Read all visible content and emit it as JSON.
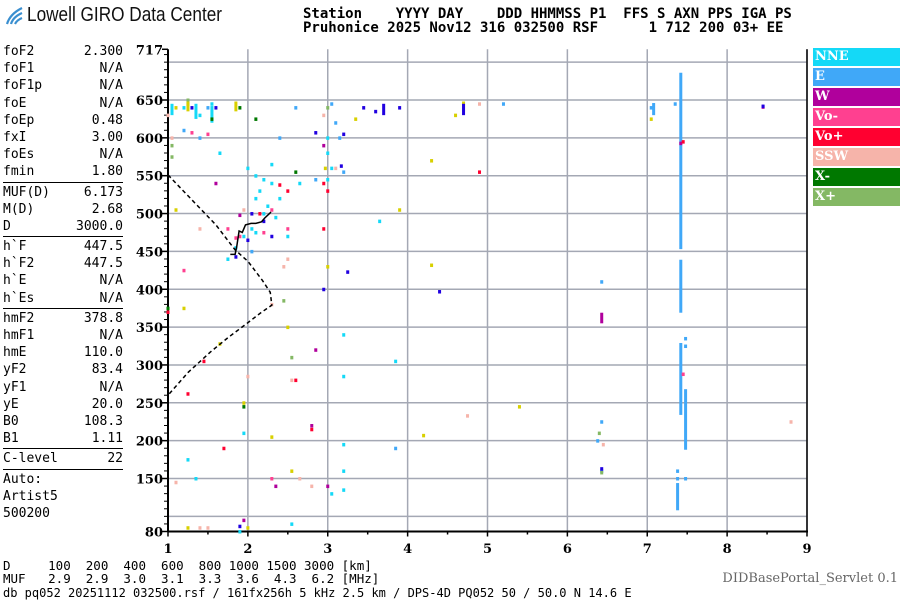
{
  "logo": {
    "text": "Lowell GIRO Data Center"
  },
  "header": {
    "labels_line": "Station    YYYY DAY    DDD HHMMSS P1  FFS S AXN PPS IGA PS",
    "values_line": "Pruhonice 2025 Nov12 316 032500 RSF      1 712 200 03+ EE"
  },
  "params": [
    {
      "group": [
        {
          "name": "foF2",
          "value": "2.300"
        },
        {
          "name": "foF1",
          "value": "N/A"
        },
        {
          "name": "foF1p",
          "value": "N/A"
        },
        {
          "name": "foE",
          "value": "N/A"
        },
        {
          "name": "foEp",
          "value": "0.48"
        },
        {
          "name": "fxI",
          "value": "3.00"
        },
        {
          "name": "foEs",
          "value": "N/A"
        },
        {
          "name": "fmin",
          "value": "1.80"
        }
      ]
    },
    {
      "group": [
        {
          "name": "MUF(D)",
          "value": "6.173"
        },
        {
          "name": "M(D)",
          "value": "2.68"
        },
        {
          "name": "D",
          "value": "3000.0"
        }
      ]
    },
    {
      "group": [
        {
          "name": "h`F",
          "value": "447.5"
        },
        {
          "name": "h`F2",
          "value": "447.5"
        },
        {
          "name": "h`E",
          "value": "N/A"
        },
        {
          "name": "h`Es",
          "value": "N/A"
        }
      ]
    },
    {
      "group": [
        {
          "name": "hmF2",
          "value": "378.8"
        },
        {
          "name": "hmF1",
          "value": "N/A"
        },
        {
          "name": "hmE",
          "value": "110.0"
        },
        {
          "name": "yF2",
          "value": "83.4"
        },
        {
          "name": "yF1",
          "value": "N/A"
        },
        {
          "name": "yE",
          "value": "20.0"
        },
        {
          "name": "B0",
          "value": "108.3"
        },
        {
          "name": "B1",
          "value": "1.11"
        }
      ]
    },
    {
      "group": [
        {
          "name": "C-level",
          "value": "22"
        }
      ]
    }
  ],
  "autoscaling": [
    "Auto:",
    "Artist5",
    "500200"
  ],
  "bottom": {
    "d_line": "D     100  200  400  600  800 1000 1500 3000 [km]",
    "muf_line": "MUF   2.9  2.9  3.0  3.1  3.3  3.6  4.3  6.2 [MHz]",
    "db_line": "db pq052 20251112 032500.rsf / 161fx256h 5 kHz 2.5 km / DPS-4D PQ052 50 / 50.0 N 14.6 E",
    "servlet": "DIDBasePortal_Servlet 0.1"
  },
  "chart_data": {
    "type": "scatter",
    "title": "",
    "xlabel": "",
    "ylabel": "",
    "xlim": [
      1,
      9
    ],
    "ylim": [
      80,
      717
    ],
    "x_ticks": [
      "1",
      "2",
      "3",
      "4",
      "5",
      "6",
      "7",
      "8",
      "9"
    ],
    "y_ticks": [
      "717",
      "650",
      "600",
      "550",
      "500",
      "450",
      "400",
      "350",
      "300",
      "250",
      "200",
      "150",
      "80"
    ],
    "grid": true,
    "legend_placement": "right",
    "legend": [
      {
        "name": "NNE",
        "color": "#14d9f7"
      },
      {
        "name": "E",
        "color": "#40a8f8"
      },
      {
        "name": "W",
        "color": "#b0009c"
      },
      {
        "name": "Vo-",
        "color": "#ff4090"
      },
      {
        "name": "Vo+",
        "color": "#ff0030"
      },
      {
        "name": "SSW",
        "color": "#f6b4aa"
      },
      {
        "name": "X-",
        "color": "#007800"
      },
      {
        "name": "X+",
        "color": "#84b864"
      }
    ],
    "series": [
      {
        "name": "NNE",
        "color": "#14d9f7",
        "points": [
          [
            2.1,
            520
          ],
          [
            2.15,
            530
          ],
          [
            2.2,
            545
          ],
          [
            2.3,
            540
          ],
          [
            2.25,
            510
          ],
          [
            2.05,
            480
          ],
          [
            1.95,
            470
          ],
          [
            1.85,
            455
          ],
          [
            2.1,
            475
          ],
          [
            2.2,
            500
          ],
          [
            1.75,
            440
          ],
          [
            2.4,
            520
          ],
          [
            2.35,
            495
          ],
          [
            1.05,
            640
          ],
          [
            1.2,
            640
          ],
          [
            1.4,
            630
          ],
          [
            1.55,
            645
          ],
          [
            2.0,
            560
          ],
          [
            2.1,
            550
          ],
          [
            2.3,
            565
          ],
          [
            3.0,
            600
          ],
          [
            3.0,
            580
          ],
          [
            3.0,
            545
          ],
          [
            3.2,
            340
          ],
          [
            3.2,
            285
          ],
          [
            3.2,
            195
          ],
          [
            3.2,
            160
          ],
          [
            3.2,
            135
          ],
          [
            3.05,
            130
          ],
          [
            2.55,
            90
          ],
          [
            1.9,
            80
          ],
          [
            3.85,
            305
          ],
          [
            3.65,
            490
          ],
          [
            3.05,
            560
          ],
          [
            2.65,
            540
          ],
          [
            2.5,
            470
          ],
          [
            1.25,
            175
          ],
          [
            1.35,
            150
          ],
          [
            1.65,
            580
          ],
          [
            1.95,
            210
          ]
        ],
        "segments": [
          [
            1.05,
            630,
            645
          ],
          [
            1.35,
            625,
            645
          ],
          [
            1.55,
            620,
            642
          ]
        ]
      },
      {
        "name": "E",
        "color": "#40a8f8",
        "points": [
          [
            1.2,
            610
          ],
          [
            1.4,
            600
          ],
          [
            1.5,
            640
          ],
          [
            2.4,
            600
          ],
          [
            2.6,
            640
          ],
          [
            3.05,
            645
          ],
          [
            3.15,
            600
          ],
          [
            3.1,
            620
          ],
          [
            3.85,
            190
          ],
          [
            5.2,
            645
          ],
          [
            6.43,
            410
          ],
          [
            6.43,
            225
          ],
          [
            6.38,
            200
          ],
          [
            6.43,
            160
          ],
          [
            7.05,
            640
          ],
          [
            7.35,
            645
          ],
          [
            3.2,
            555
          ],
          [
            2.05,
            450
          ],
          [
            2.85,
            545
          ],
          [
            7.38,
            160
          ],
          [
            7.38,
            150
          ],
          [
            7.48,
            335
          ],
          [
            7.48,
            325
          ],
          [
            7.48,
            150
          ]
        ],
        "segments": [
          [
            7.42,
            453,
            686
          ],
          [
            7.42,
            369,
            439
          ],
          [
            7.42,
            234,
            329
          ],
          [
            7.48,
            188,
            268
          ],
          [
            7.38,
            108,
            144
          ],
          [
            7.08,
            630,
            646
          ]
        ]
      },
      {
        "name": "W",
        "color": "#b0009c",
        "points": [
          [
            1.9,
            498
          ],
          [
            2.35,
            140
          ],
          [
            1.6,
            540
          ],
          [
            3.0,
            140
          ],
          [
            2.85,
            320
          ],
          [
            2.8,
            220
          ],
          [
            8.45,
            641
          ],
          [
            2.95,
            590
          ],
          [
            1.95,
            95
          ],
          [
            7.42,
            593
          ]
        ],
        "segments": [
          [
            6.43,
            355,
            369
          ]
        ]
      },
      {
        "name": "Vo-",
        "color": "#ff4090",
        "points": [
          [
            1.3,
            607
          ],
          [
            2.3,
            505
          ],
          [
            1.85,
            468
          ],
          [
            1.75,
            480
          ],
          [
            2.2,
            475
          ],
          [
            1.2,
            425
          ],
          [
            1.5,
            605
          ],
          [
            2.3,
            150
          ],
          [
            2.5,
            480
          ],
          [
            7.45,
            288
          ],
          [
            1.9,
            470
          ]
        ],
        "segments": []
      },
      {
        "name": "Vo+",
        "color": "#ff0030",
        "points": [
          [
            2.5,
            530
          ],
          [
            2.15,
            500
          ],
          [
            2.4,
            538
          ],
          [
            3.0,
            530
          ],
          [
            1.25,
            262
          ],
          [
            1.7,
            190
          ],
          [
            1.45,
            305
          ],
          [
            2.95,
            540
          ],
          [
            4.9,
            555
          ],
          [
            2.8,
            215
          ],
          [
            1.0,
            370
          ],
          [
            2.6,
            280
          ],
          [
            2.95,
            480
          ],
          [
            7.45,
            595
          ]
        ],
        "segments": []
      },
      {
        "name": "SSW",
        "color": "#f6b4aa",
        "points": [
          [
            1.0,
            630
          ],
          [
            1.05,
            600
          ],
          [
            1.4,
            480
          ],
          [
            2.45,
            430
          ],
          [
            1.95,
            505
          ],
          [
            2.3,
            380
          ],
          [
            2.5,
            440
          ],
          [
            2.8,
            140
          ],
          [
            2.55,
            280
          ],
          [
            2.65,
            150
          ],
          [
            4.9,
            645
          ],
          [
            3.1,
            560
          ],
          [
            1.1,
            145
          ],
          [
            4.75,
            233
          ],
          [
            1.4,
            85
          ],
          [
            1.5,
            85
          ],
          [
            8.8,
            225
          ],
          [
            6.45,
            195
          ],
          [
            2.95,
            630
          ],
          [
            2.0,
            285
          ]
        ],
        "segments": []
      },
      {
        "name": "X-",
        "color": "#007800",
        "points": [
          [
            1.0,
            375
          ],
          [
            1.25,
            645
          ],
          [
            1.55,
            625
          ],
          [
            2.6,
            555
          ],
          [
            1.9,
            640
          ],
          [
            2.1,
            625
          ],
          [
            1.95,
            245
          ]
        ],
        "segments": []
      },
      {
        "name": "X+",
        "color": "#84b864",
        "points": [
          [
            1.05,
            575
          ],
          [
            2.45,
            385
          ],
          [
            2.55,
            310
          ],
          [
            1.05,
            590
          ],
          [
            1.25,
            650
          ],
          [
            3.0,
            640
          ],
          [
            6.4,
            210
          ],
          [
            6.43,
            158
          ]
        ],
        "segments": []
      },
      {
        "color": "#d8d000",
        "points": [
          [
            1.1,
            640
          ],
          [
            1.2,
            375
          ],
          [
            1.65,
            328
          ],
          [
            1.95,
            250
          ],
          [
            2.3,
            205
          ],
          [
            2.55,
            160
          ],
          [
            2.97,
            560
          ],
          [
            3.0,
            430
          ],
          [
            3.35,
            625
          ],
          [
            4.3,
            570
          ],
          [
            4.3,
            432
          ],
          [
            4.2,
            207
          ],
          [
            4.6,
            630
          ],
          [
            5.4,
            245
          ],
          [
            3.9,
            505
          ],
          [
            1.1,
            505
          ],
          [
            2.5,
            350
          ],
          [
            2.0,
            85
          ],
          [
            1.25,
            85
          ],
          [
            7.05,
            625
          ]
        ],
        "segments": [
          [
            1.25,
            635,
            648
          ],
          [
            1.85,
            635,
            648
          ],
          [
            4.7,
            635,
            648
          ]
        ]
      },
      {
        "color": "#2000e0",
        "points": [
          [
            1.85,
            443
          ],
          [
            1.3,
            640
          ],
          [
            1.6,
            640
          ],
          [
            2.3,
            470
          ],
          [
            2.2,
            490
          ],
          [
            2.85,
            607
          ],
          [
            3.17,
            563
          ],
          [
            3.25,
            423
          ],
          [
            2.95,
            400
          ],
          [
            3.45,
            640
          ],
          [
            3.6,
            635
          ],
          [
            3.9,
            640
          ],
          [
            4.4,
            397
          ],
          [
            2.05,
            500
          ],
          [
            2.0,
            465
          ],
          [
            6.43,
            163
          ],
          [
            8.45,
            642
          ],
          [
            1.9,
            87
          ],
          [
            3.2,
            605
          ]
        ],
        "segments": [
          [
            3.7,
            630,
            645
          ],
          [
            4.7,
            630,
            645
          ]
        ]
      }
    ],
    "virtual_height_trace": {
      "color": "#000000",
      "points": [
        [
          1.78,
          446
        ],
        [
          1.84,
          446
        ],
        [
          1.86,
          456
        ],
        [
          1.89,
          477
        ],
        [
          1.93,
          475
        ],
        [
          1.97,
          485
        ],
        [
          2.04,
          487
        ],
        [
          2.1,
          487
        ],
        [
          2.17,
          489
        ],
        [
          2.21,
          494
        ],
        [
          2.29,
          502
        ]
      ]
    },
    "true_height_profile": {
      "color": "#000000",
      "style": "dashed",
      "points": [
        [
          1.0,
          551
        ],
        [
          1.3,
          518
        ],
        [
          1.6,
          485
        ],
        [
          1.84,
          452
        ],
        [
          2.0,
          437
        ],
        [
          2.18,
          412
        ],
        [
          2.28,
          396
        ],
        [
          2.3,
          379
        ],
        [
          2.15,
          368
        ],
        [
          1.99,
          355
        ],
        [
          1.75,
          336
        ],
        [
          1.53,
          317
        ],
        [
          1.25,
          290
        ],
        [
          1.0,
          260
        ]
      ]
    }
  }
}
